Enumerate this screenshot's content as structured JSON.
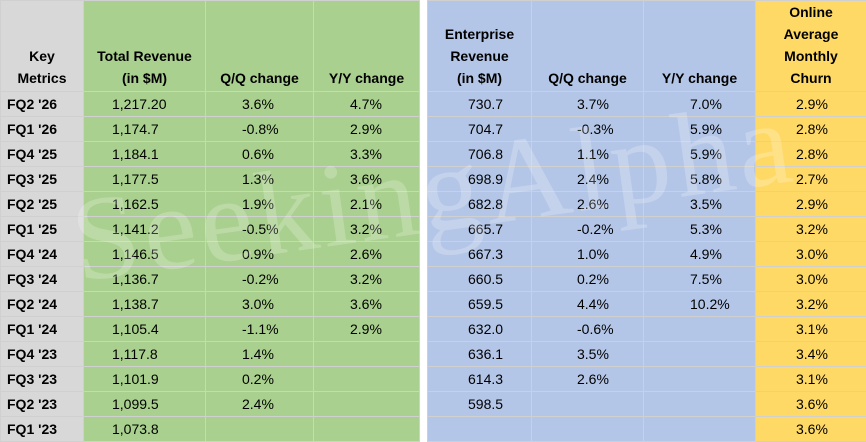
{
  "table": {
    "headers": {
      "metric": [
        "Key",
        "Metrics"
      ],
      "total_revenue": [
        "Total Revenue",
        "(in $M)"
      ],
      "qq": [
        "Q/Q change"
      ],
      "yy": [
        "Y/Y change"
      ],
      "enterprise_revenue": [
        "Enterprise",
        "Revenue",
        "(in $M)"
      ],
      "eqq": [
        "Q/Q change"
      ],
      "eyy": [
        "Y/Y change"
      ],
      "churn": [
        "Online",
        "Average",
        "Monthly",
        "Churn"
      ]
    },
    "rows": [
      {
        "quarter": "FQ2 '26",
        "rev": "1,217.20",
        "qq": "3.6%",
        "yy": "4.7%",
        "erev": "730.7",
        "eqq": "3.7%",
        "eyy": "7.0%",
        "churn": "2.9%"
      },
      {
        "quarter": "FQ1 '26",
        "rev": "1,174.7",
        "qq": "-0.8%",
        "yy": "2.9%",
        "erev": "704.7",
        "eqq": "-0.3%",
        "eyy": "5.9%",
        "churn": "2.8%"
      },
      {
        "quarter": "FQ4 '25",
        "rev": "1,184.1",
        "qq": "0.6%",
        "yy": "3.3%",
        "erev": "706.8",
        "eqq": "1.1%",
        "eyy": "5.9%",
        "churn": "2.8%"
      },
      {
        "quarter": "FQ3 '25",
        "rev": "1,177.5",
        "qq": "1.3%",
        "yy": "3.6%",
        "erev": "698.9",
        "eqq": "2.4%",
        "eyy": "5.8%",
        "churn": "2.7%"
      },
      {
        "quarter": "FQ2 '25",
        "rev": "1,162.5",
        "qq": "1.9%",
        "yy": "2.1%",
        "erev": "682.8",
        "eqq": "2.6%",
        "eyy": "3.5%",
        "churn": "2.9%"
      },
      {
        "quarter": "FQ1 '25",
        "rev": "1,141.2",
        "qq": "-0.5%",
        "yy": "3.2%",
        "erev": "665.7",
        "eqq": "-0.2%",
        "eyy": "5.3%",
        "churn": "3.2%"
      },
      {
        "quarter": "FQ4 '24",
        "rev": "1,146.5",
        "qq": "0.9%",
        "yy": "2.6%",
        "erev": "667.3",
        "eqq": "1.0%",
        "eyy": "4.9%",
        "churn": "3.0%"
      },
      {
        "quarter": "FQ3 '24",
        "rev": "1,136.7",
        "qq": "-0.2%",
        "yy": "3.2%",
        "erev": "660.5",
        "eqq": "0.2%",
        "eyy": "7.5%",
        "churn": "3.0%"
      },
      {
        "quarter": "FQ2 '24",
        "rev": "1,138.7",
        "qq": "3.0%",
        "yy": "3.6%",
        "erev": "659.5",
        "eqq": "4.4%",
        "eyy": "10.2%",
        "churn": "3.2%"
      },
      {
        "quarter": "FQ1 '24",
        "rev": "1,105.4",
        "qq": "-1.1%",
        "yy": "2.9%",
        "erev": "632.0",
        "eqq": "-0.6%",
        "eyy": "",
        "churn": "3.1%"
      },
      {
        "quarter": "FQ4 '23",
        "rev": "1,117.8",
        "qq": "1.4%",
        "yy": "",
        "erev": "636.1",
        "eqq": "3.5%",
        "eyy": "",
        "churn": "3.4%"
      },
      {
        "quarter": "FQ3 '23",
        "rev": "1,101.9",
        "qq": "0.2%",
        "yy": "",
        "erev": "614.3",
        "eqq": "2.6%",
        "eyy": "",
        "churn": "3.1%"
      },
      {
        "quarter": "FQ2 '23",
        "rev": "1,099.5",
        "qq": "2.4%",
        "yy": "",
        "erev": "598.5",
        "eqq": "",
        "eyy": "",
        "churn": "3.6%"
      },
      {
        "quarter": "FQ1 '23",
        "rev": "1,073.8",
        "qq": "",
        "yy": "",
        "erev": "",
        "eqq": "",
        "eyy": "",
        "churn": "3.6%"
      }
    ]
  },
  "watermark": "SeekingAlpha",
  "colors": {
    "metric_bg": "#d8d8d8",
    "total_bg": "#a9d08e",
    "enterprise_bg": "#b4c6e7",
    "churn_bg": "#ffd966"
  }
}
